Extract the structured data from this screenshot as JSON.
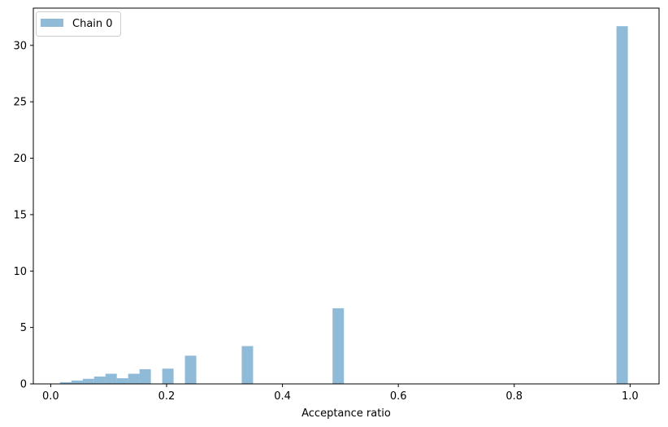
{
  "chart_data": {
    "type": "bar",
    "xlabel": "Acceptance ratio",
    "ylabel": "",
    "xlim": [
      -0.03,
      1.05
    ],
    "ylim": [
      0,
      33.3
    ],
    "xticks": [
      0.0,
      0.2,
      0.4,
      0.6,
      0.8,
      1.0
    ],
    "xtick_labels": [
      "0.0",
      "0.2",
      "0.4",
      "0.6",
      "0.8",
      "1.0"
    ],
    "yticks": [
      0,
      5,
      10,
      15,
      20,
      25,
      30
    ],
    "ytick_labels": [
      "0",
      "5",
      "10",
      "15",
      "20",
      "25",
      "30"
    ],
    "grid": false,
    "legend_position": "top-left",
    "bin_width": 0.0196,
    "series": [
      {
        "name": "Chain 0",
        "color": "#1f77b4",
        "alpha": 0.5,
        "bins": [
          {
            "start": 0.0161,
            "value": 0.15
          },
          {
            "start": 0.0357,
            "value": 0.3
          },
          {
            "start": 0.0553,
            "value": 0.45
          },
          {
            "start": 0.0749,
            "value": 0.65
          },
          {
            "start": 0.0945,
            "value": 0.9
          },
          {
            "start": 0.1141,
            "value": 0.5
          },
          {
            "start": 0.1337,
            "value": 0.9
          },
          {
            "start": 0.1533,
            "value": 1.3
          },
          {
            "start": 0.1925,
            "value": 1.35
          },
          {
            "start": 0.2317,
            "value": 2.5
          },
          {
            "start": 0.3297,
            "value": 3.35
          },
          {
            "start": 0.4865,
            "value": 6.7
          },
          {
            "start": 0.9765,
            "value": 31.7
          }
        ]
      }
    ]
  }
}
